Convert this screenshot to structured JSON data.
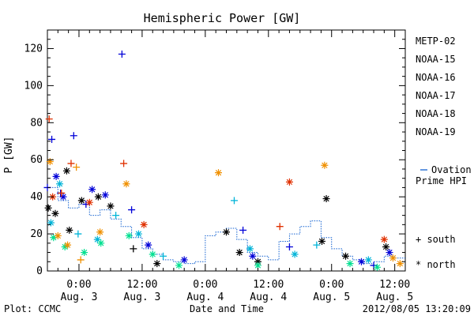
{
  "chart_data": {
    "type": "scatter",
    "title": "Hemispheric Power [GW]",
    "ylabel": "P [GW]",
    "xlabel": "Date and Time",
    "ylim": [
      0,
      130
    ],
    "xlim": [
      "2012-08-02 18:00",
      "2012-08-05 14:00"
    ],
    "grid": false,
    "legend_position": "right",
    "y_ticks": [
      0,
      20,
      40,
      60,
      80,
      100,
      120
    ],
    "x_ticks": [
      {
        "x": "2012-08-03 00:00",
        "time": "0:00",
        "date": "Aug. 3"
      },
      {
        "x": "2012-08-03 12:00",
        "time": "12:00",
        "date": "Aug. 3"
      },
      {
        "x": "2012-08-04 00:00",
        "time": "0:00",
        "date": "Aug. 4"
      },
      {
        "x": "2012-08-04 12:00",
        "time": "12:00",
        "date": "Aug. 4"
      },
      {
        "x": "2012-08-05 00:00",
        "time": "0:00",
        "date": "Aug. 5"
      },
      {
        "x": "2012-08-05 12:00",
        "time": "12:00",
        "date": "Aug. 5"
      }
    ],
    "series": [
      {
        "name": "METP-02",
        "color": "#000000",
        "points": [
          {
            "x": "2012-08-02 18:10",
            "y": 34,
            "m": "star"
          },
          {
            "x": "2012-08-02 19:30",
            "y": 31,
            "m": "star"
          },
          {
            "x": "2012-08-02 21:40",
            "y": 54,
            "m": "star"
          },
          {
            "x": "2012-08-02 22:10",
            "y": 22,
            "m": "star"
          },
          {
            "x": "2012-08-03 00:30",
            "y": 38,
            "m": "star"
          },
          {
            "x": "2012-08-03 03:40",
            "y": 40,
            "m": "star"
          },
          {
            "x": "2012-08-03 06:00",
            "y": 35,
            "m": "star"
          },
          {
            "x": "2012-08-03 10:20",
            "y": 12,
            "m": "plus"
          },
          {
            "x": "2012-08-03 14:50",
            "y": 4,
            "m": "star"
          },
          {
            "x": "2012-08-04 04:00",
            "y": 21,
            "m": "star"
          },
          {
            "x": "2012-08-04 06:30",
            "y": 10,
            "m": "star"
          },
          {
            "x": "2012-08-04 10:00",
            "y": 5,
            "m": "star"
          },
          {
            "x": "2012-08-04 23:00",
            "y": 39,
            "m": "star"
          },
          {
            "x": "2012-08-04 22:10",
            "y": 16,
            "m": "star"
          },
          {
            "x": "2012-08-05 02:40",
            "y": 8,
            "m": "star"
          },
          {
            "x": "2012-08-05 10:20",
            "y": 13,
            "m": "star"
          }
        ]
      },
      {
        "name": "NOAA-15",
        "color": "#0000d8",
        "points": [
          {
            "x": "2012-08-02 18:00",
            "y": 45,
            "m": "plus"
          },
          {
            "x": "2012-08-02 18:50",
            "y": 71,
            "m": "plus"
          },
          {
            "x": "2012-08-02 19:40",
            "y": 51,
            "m": "star"
          },
          {
            "x": "2012-08-02 20:30",
            "y": 42,
            "m": "plus"
          },
          {
            "x": "2012-08-02 21:00",
            "y": 40,
            "m": "star"
          },
          {
            "x": "2012-08-02 23:00",
            "y": 73,
            "m": "plus"
          },
          {
            "x": "2012-08-03 01:20",
            "y": 36,
            "m": "plus"
          },
          {
            "x": "2012-08-03 02:30",
            "y": 44,
            "m": "star"
          },
          {
            "x": "2012-08-03 05:00",
            "y": 41,
            "m": "star"
          },
          {
            "x": "2012-08-03 08:10",
            "y": 117,
            "m": "plus"
          },
          {
            "x": "2012-08-03 10:00",
            "y": 33,
            "m": "plus"
          },
          {
            "x": "2012-08-03 13:10",
            "y": 14,
            "m": "star"
          },
          {
            "x": "2012-08-03 20:00",
            "y": 6,
            "m": "star"
          },
          {
            "x": "2012-08-04 07:10",
            "y": 22,
            "m": "plus"
          },
          {
            "x": "2012-08-04 09:00",
            "y": 8,
            "m": "star"
          },
          {
            "x": "2012-08-04 16:00",
            "y": 13,
            "m": "plus"
          },
          {
            "x": "2012-08-05 05:40",
            "y": 5,
            "m": "star"
          },
          {
            "x": "2012-08-05 08:00",
            "y": 3,
            "m": "plus"
          },
          {
            "x": "2012-08-05 11:00",
            "y": 10,
            "m": "star"
          }
        ]
      },
      {
        "name": "NOAA-16",
        "color": "#00b4d8",
        "points": [
          {
            "x": "2012-08-02 18:40",
            "y": 26,
            "m": "star"
          },
          {
            "x": "2012-08-02 20:20",
            "y": 47,
            "m": "star"
          },
          {
            "x": "2012-08-02 23:50",
            "y": 20,
            "m": "plus"
          },
          {
            "x": "2012-08-03 03:30",
            "y": 17,
            "m": "star"
          },
          {
            "x": "2012-08-03 07:00",
            "y": 30,
            "m": "plus"
          },
          {
            "x": "2012-08-03 11:20",
            "y": 20,
            "m": "star"
          },
          {
            "x": "2012-08-03 16:00",
            "y": 8,
            "m": "plus"
          },
          {
            "x": "2012-08-04 05:30",
            "y": 38,
            "m": "plus"
          },
          {
            "x": "2012-08-04 08:30",
            "y": 12,
            "m": "star"
          },
          {
            "x": "2012-08-04 17:00",
            "y": 9,
            "m": "star"
          },
          {
            "x": "2012-08-04 21:10",
            "y": 14,
            "m": "plus"
          },
          {
            "x": "2012-08-05 07:00",
            "y": 6,
            "m": "star"
          }
        ]
      },
      {
        "name": "NOAA-17",
        "color": "#00e090",
        "points": [
          {
            "x": "2012-08-02 19:10",
            "y": 18,
            "m": "star"
          },
          {
            "x": "2012-08-02 21:20",
            "y": 13,
            "m": "star"
          },
          {
            "x": "2012-08-03 01:00",
            "y": 10,
            "m": "star"
          },
          {
            "x": "2012-08-03 04:10",
            "y": 15,
            "m": "star"
          },
          {
            "x": "2012-08-03 09:30",
            "y": 19,
            "m": "star"
          },
          {
            "x": "2012-08-03 14:00",
            "y": 9,
            "m": "star"
          },
          {
            "x": "2012-08-03 19:00",
            "y": 3,
            "m": "star"
          },
          {
            "x": "2012-08-04 10:00",
            "y": 3,
            "m": "star"
          },
          {
            "x": "2012-08-05 03:30",
            "y": 4,
            "m": "star"
          },
          {
            "x": "2012-08-05 08:40",
            "y": 2,
            "m": "star"
          }
        ]
      },
      {
        "name": "NOAA-18",
        "color": "#f09000",
        "points": [
          {
            "x": "2012-08-02 18:30",
            "y": 59,
            "m": "star"
          },
          {
            "x": "2012-08-02 20:00",
            "y": 19,
            "m": "star"
          },
          {
            "x": "2012-08-02 21:50",
            "y": 14,
            "m": "star"
          },
          {
            "x": "2012-08-02 23:30",
            "y": 56,
            "m": "plus"
          },
          {
            "x": "2012-08-03 00:20",
            "y": 6,
            "m": "plus"
          },
          {
            "x": "2012-08-03 04:00",
            "y": 21,
            "m": "star"
          },
          {
            "x": "2012-08-03 09:00",
            "y": 47,
            "m": "star"
          },
          {
            "x": "2012-08-04 02:30",
            "y": 53,
            "m": "star"
          },
          {
            "x": "2012-08-04 22:40",
            "y": 57,
            "m": "star"
          },
          {
            "x": "2012-08-05 11:40",
            "y": 7,
            "m": "star"
          },
          {
            "x": "2012-08-05 13:00",
            "y": 4,
            "m": "star"
          }
        ]
      },
      {
        "name": "NOAA-19",
        "color": "#e03000",
        "points": [
          {
            "x": "2012-08-02 18:20",
            "y": 82,
            "m": "plus"
          },
          {
            "x": "2012-08-02 19:00",
            "y": 40,
            "m": "star"
          },
          {
            "x": "2012-08-02 20:40",
            "y": 42,
            "m": "plus"
          },
          {
            "x": "2012-08-02 22:30",
            "y": 58,
            "m": "plus"
          },
          {
            "x": "2012-08-03 02:00",
            "y": 37,
            "m": "star"
          },
          {
            "x": "2012-08-03 08:30",
            "y": 58,
            "m": "plus"
          },
          {
            "x": "2012-08-03 12:20",
            "y": 25,
            "m": "star"
          },
          {
            "x": "2012-08-04 14:10",
            "y": 24,
            "m": "plus"
          },
          {
            "x": "2012-08-04 16:00",
            "y": 48,
            "m": "star"
          },
          {
            "x": "2012-08-05 10:00",
            "y": 17,
            "m": "star"
          }
        ]
      }
    ],
    "ovation": {
      "name": "Ovation Prime HPI",
      "label_line1": "Ovation",
      "label_line2": "Prime HPI",
      "color": "#1060d0",
      "steps": [
        [
          "2012-08-02 18:00",
          45
        ],
        [
          "2012-08-02 20:00",
          38
        ],
        [
          "2012-08-02 22:00",
          34
        ],
        [
          "2012-08-03 00:00",
          36
        ],
        [
          "2012-08-03 02:00",
          30
        ],
        [
          "2012-08-03 04:00",
          33
        ],
        [
          "2012-08-03 06:00",
          28
        ],
        [
          "2012-08-03 08:00",
          24
        ],
        [
          "2012-08-03 10:00",
          18
        ],
        [
          "2012-08-03 12:00",
          12
        ],
        [
          "2012-08-03 14:00",
          9
        ],
        [
          "2012-08-03 16:00",
          6
        ],
        [
          "2012-08-03 18:00",
          5
        ],
        [
          "2012-08-03 20:00",
          4
        ],
        [
          "2012-08-03 22:00",
          5
        ],
        [
          "2012-08-04 00:00",
          19
        ],
        [
          "2012-08-04 02:00",
          21
        ],
        [
          "2012-08-04 04:00",
          23
        ],
        [
          "2012-08-04 06:00",
          17
        ],
        [
          "2012-08-04 08:00",
          10
        ],
        [
          "2012-08-04 10:00",
          8
        ],
        [
          "2012-08-04 12:00",
          6
        ],
        [
          "2012-08-04 14:00",
          16
        ],
        [
          "2012-08-04 16:00",
          20
        ],
        [
          "2012-08-04 18:00",
          24
        ],
        [
          "2012-08-04 20:00",
          27
        ],
        [
          "2012-08-04 22:00",
          18
        ],
        [
          "2012-08-05 00:00",
          12
        ],
        [
          "2012-08-05 02:00",
          8
        ],
        [
          "2012-08-05 04:00",
          6
        ],
        [
          "2012-08-05 06:00",
          4
        ],
        [
          "2012-08-05 08:00",
          5
        ],
        [
          "2012-08-05 10:00",
          8
        ],
        [
          "2012-08-05 12:00",
          7
        ],
        [
          "2012-08-05 14:00",
          7
        ]
      ]
    },
    "marker_legend": [
      {
        "symbol": "+",
        "label": "south"
      },
      {
        "symbol": "*",
        "label": "north"
      }
    ]
  },
  "footer": {
    "left": "Plot: CCMC",
    "center": "Date and Time",
    "right": "2012/08/05 13:20:09"
  }
}
